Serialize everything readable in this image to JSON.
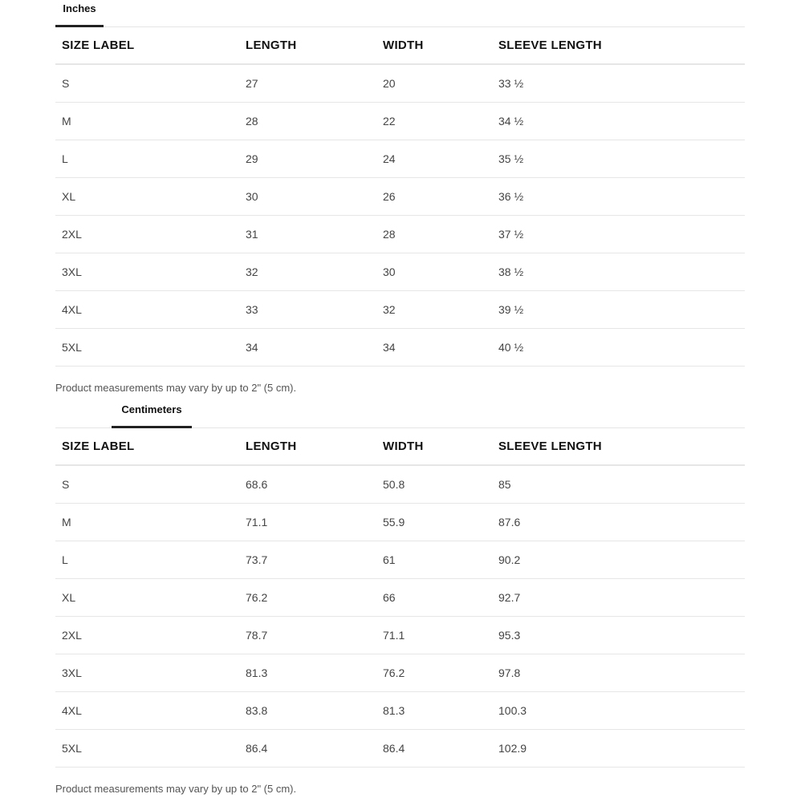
{
  "columns": [
    "SIZE LABEL",
    "LENGTH",
    "WIDTH",
    "SLEEVE LENGTH"
  ],
  "inches": {
    "tab_label": "Inches",
    "rows": [
      [
        "S",
        "27",
        "20",
        "33 ½"
      ],
      [
        "M",
        "28",
        "22",
        "34 ½"
      ],
      [
        "L",
        "29",
        "24",
        "35 ½"
      ],
      [
        "XL",
        "30",
        "26",
        "36 ½"
      ],
      [
        "2XL",
        "31",
        "28",
        "37 ½"
      ],
      [
        "3XL",
        "32",
        "30",
        "38 ½"
      ],
      [
        "4XL",
        "33",
        "32",
        "39 ½"
      ],
      [
        "5XL",
        "34",
        "34",
        "40 ½"
      ]
    ],
    "note": "Product measurements may vary by up to 2\" (5 cm)."
  },
  "centimeters": {
    "tab_label": "Centimeters",
    "rows": [
      [
        "S",
        "68.6",
        "50.8",
        "85"
      ],
      [
        "M",
        "71.1",
        "55.9",
        "87.6"
      ],
      [
        "L",
        "73.7",
        "61",
        "90.2"
      ],
      [
        "XL",
        "76.2",
        "66",
        "92.7"
      ],
      [
        "2XL",
        "78.7",
        "71.1",
        "95.3"
      ],
      [
        "3XL",
        "81.3",
        "76.2",
        "97.8"
      ],
      [
        "4XL",
        "83.8",
        "81.3",
        "100.3"
      ],
      [
        "5XL",
        "86.4",
        "86.4",
        "102.9"
      ]
    ],
    "note": "Product measurements may vary by up to 2\" (5 cm)."
  }
}
